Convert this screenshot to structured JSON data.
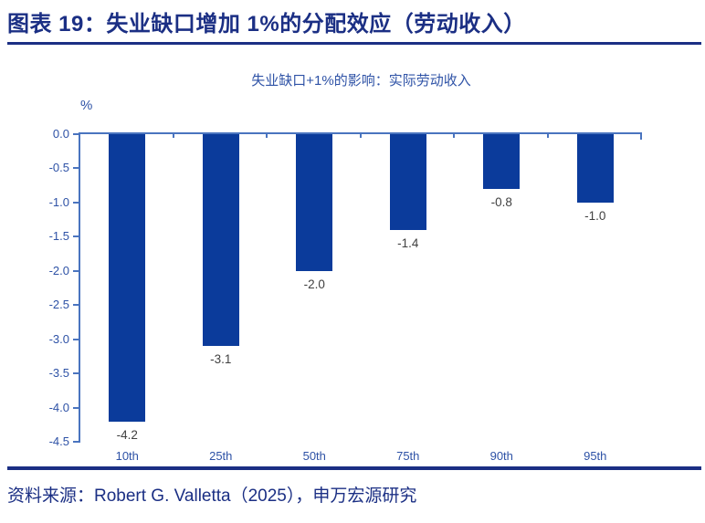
{
  "header": {
    "title": "图表 19：失业缺口增加 1%的分配效应（劳动收入）"
  },
  "chart_data": {
    "type": "bar",
    "title": "失业缺口+1%的影响：实际劳动收入",
    "xlabel": "",
    "ylabel": "%",
    "categories": [
      "10th",
      "25th",
      "50th",
      "75th",
      "90th",
      "95th"
    ],
    "values": [
      -4.2,
      -3.1,
      -2.0,
      -1.4,
      -0.8,
      -1.0
    ],
    "value_labels": [
      "-4.2",
      "-3.1",
      "-2.0",
      "-1.4",
      "-0.8",
      "-1.0"
    ],
    "ylim": [
      -4.5,
      0
    ],
    "ytick_step": 0.5,
    "yticks": [
      "0.0",
      "-0.5",
      "-1.0",
      "-1.5",
      "-2.0",
      "-2.5",
      "-3.0",
      "-3.5",
      "-4.0",
      "-4.5"
    ],
    "grid": false,
    "legend_position": "none",
    "bar_color": "#0b3b9b",
    "axis_color": "#4a74bf",
    "tick_label_color": "#2e52a6",
    "value_label_color": "#404040"
  },
  "footer": {
    "source": "资料来源：Robert G. Valletta（2025），申万宏源研究"
  },
  "colors": {
    "accent_navy": "#1b2f84",
    "bar_blue": "#0b3b9b",
    "axis_blue": "#4a74bf"
  }
}
